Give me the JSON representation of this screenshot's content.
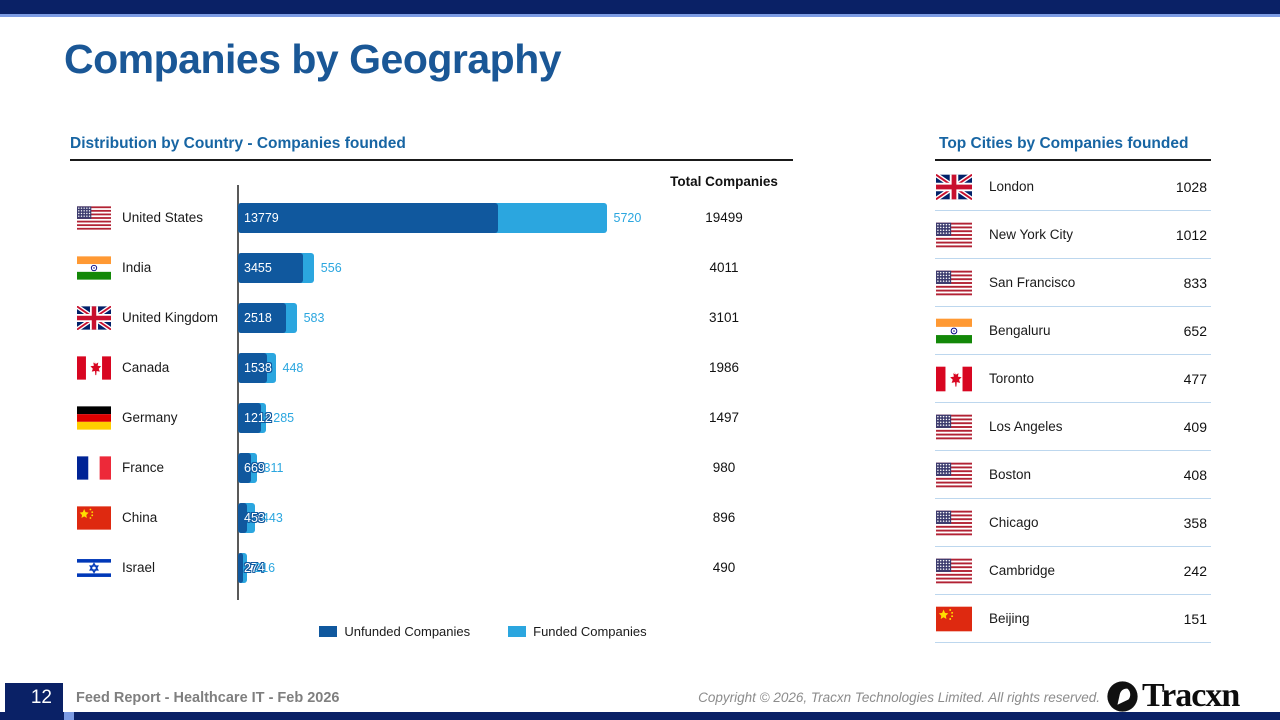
{
  "page": {
    "title": "Companies by Geography"
  },
  "chart_data": {
    "type": "bar",
    "orientation": "horizontal",
    "title": "Distribution by Country - Companies founded",
    "total_column_header": "Total Companies",
    "categories": [
      "United States",
      "India",
      "United Kingdom",
      "Canada",
      "Germany",
      "France",
      "China",
      "Israel"
    ],
    "flags": [
      "us",
      "in",
      "gb",
      "ca",
      "de",
      "fr",
      "cn",
      "il"
    ],
    "series": [
      {
        "name": "Unfunded Companies",
        "color": "#10589E",
        "values": [
          13779,
          3455,
          2518,
          1538,
          1212,
          669,
          453,
          274
        ]
      },
      {
        "name": "Funded Companies",
        "color": "#2BA6DF",
        "values": [
          5720,
          556,
          583,
          448,
          285,
          311,
          443,
          216
        ]
      }
    ],
    "totals": [
      19499,
      4011,
      3101,
      1986,
      1497,
      980,
      896,
      490
    ],
    "legend_position": "bottom"
  },
  "cities": {
    "title": "Top Cities by Companies founded",
    "rows": [
      {
        "flag": "gb",
        "name": "London",
        "value": 1028
      },
      {
        "flag": "us",
        "name": "New York City",
        "value": 1012
      },
      {
        "flag": "us",
        "name": "San Francisco",
        "value": 833
      },
      {
        "flag": "in",
        "name": "Bengaluru",
        "value": 652
      },
      {
        "flag": "ca",
        "name": "Toronto",
        "value": 477
      },
      {
        "flag": "us",
        "name": "Los Angeles",
        "value": 409
      },
      {
        "flag": "us",
        "name": "Boston",
        "value": 408
      },
      {
        "flag": "us",
        "name": "Chicago",
        "value": 358
      },
      {
        "flag": "us",
        "name": "Cambridge",
        "value": 242
      },
      {
        "flag": "cn",
        "name": "Beijing",
        "value": 151
      }
    ]
  },
  "footer": {
    "page_number": "12",
    "report_title": "Feed Report - Healthcare IT - Feb 2026",
    "copyright": "Copyright © 2026, Tracxn Technologies Limited. All rights reserved.",
    "brand": "Tracxn"
  },
  "colors": {
    "navy": "#0A2166",
    "accent_line": "#7C9BE3",
    "title_blue": "#1A5796",
    "section_blue": "#1765A3",
    "separator_blue": "#BDD7EE"
  }
}
